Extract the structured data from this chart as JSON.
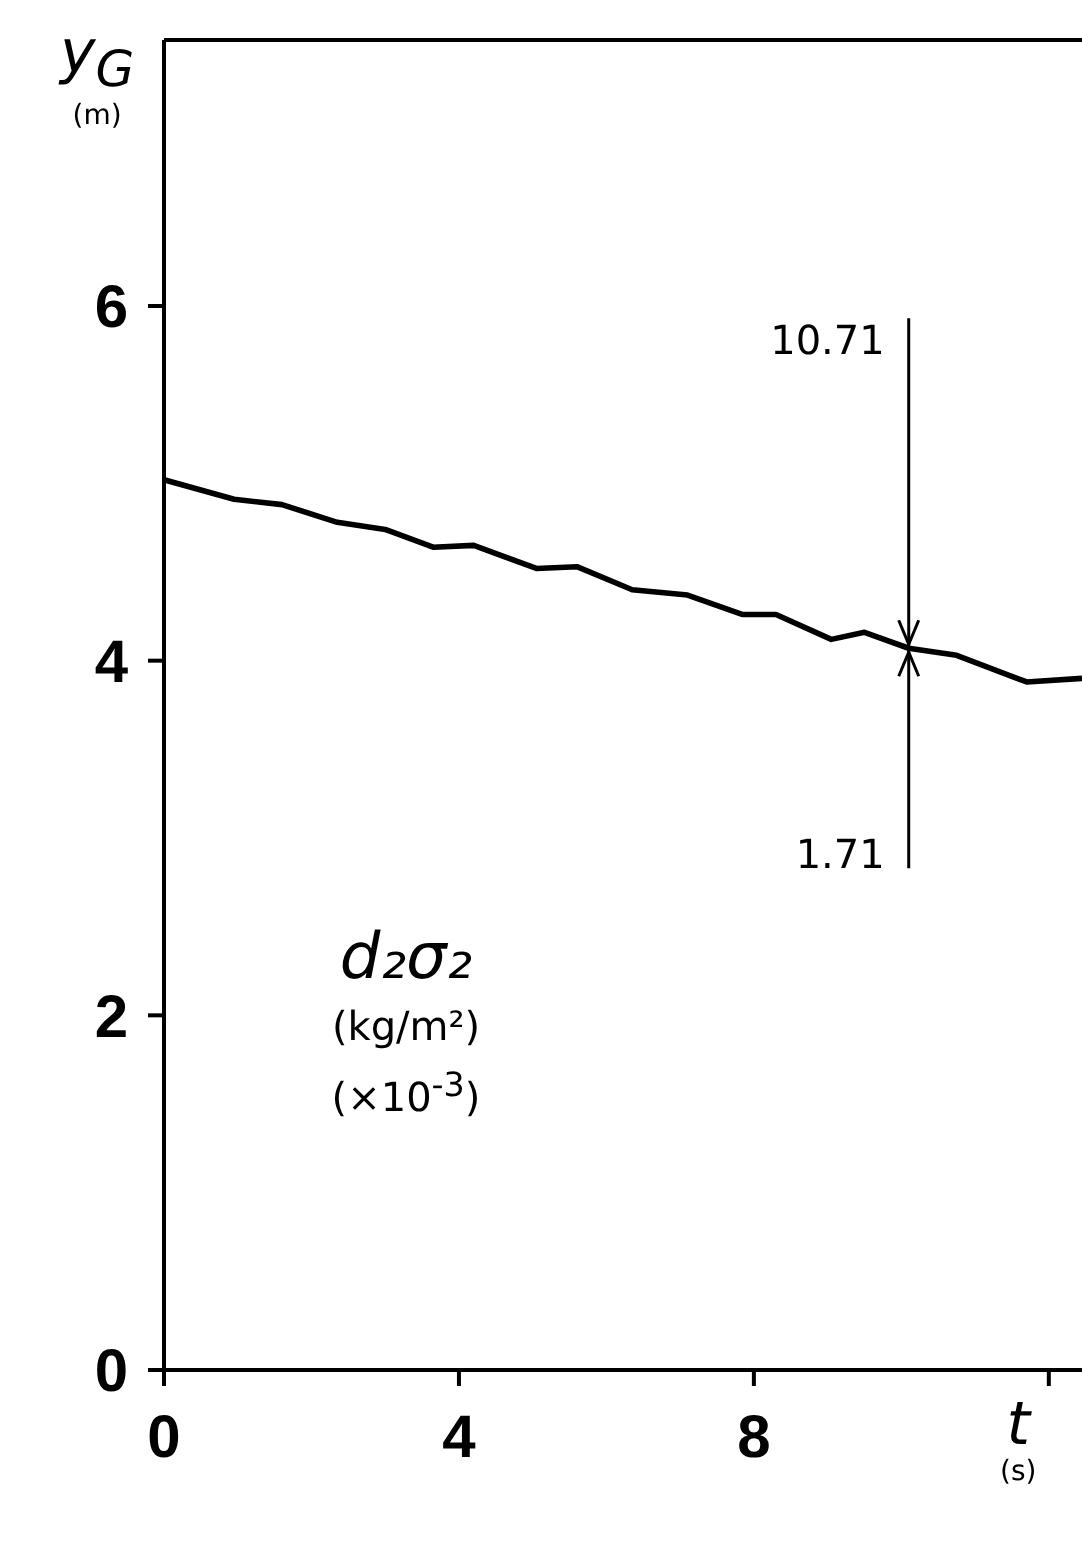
{
  "chart_data": {
    "type": "line",
    "xlabel": "t (s)",
    "ylabel": "y$_{G}$ (m)",
    "x": [
      0,
      0.95,
      1.6,
      2.35,
      3.0,
      3.65,
      4.2,
      5.05,
      5.6,
      6.35,
      7.1,
      7.85,
      8.3,
      9.05,
      9.5,
      10.1,
      10.75,
      11.7,
      12.45
    ],
    "series": [
      {
        "color": "#000000",
        "values": [
          5.02,
          4.91,
          4.88,
          4.78,
          4.74,
          4.64,
          4.65,
          4.52,
          4.53,
          4.4,
          4.37,
          4.26,
          4.26,
          4.12,
          4.16,
          4.07,
          4.03,
          3.88,
          3.9
        ]
      }
    ],
    "xlim": [
      0,
      12.45
    ],
    "xticks": [
      0,
      4,
      8,
      {
        "value": 12,
        "label": null
      }
    ],
    "ylim": [
      0,
      7.5
    ],
    "yticks": [
      0,
      2,
      4,
      6
    ],
    "annotations": [
      {
        "text": "10.71",
        "x": 10.1,
        "y": 4.07
      },
      {
        "text": "1.71",
        "x": 10.1,
        "y": 4.07
      },
      "d₂σ₂",
      "(kg/m²)",
      "(×10$^{-3}$)"
    ]
  }
}
